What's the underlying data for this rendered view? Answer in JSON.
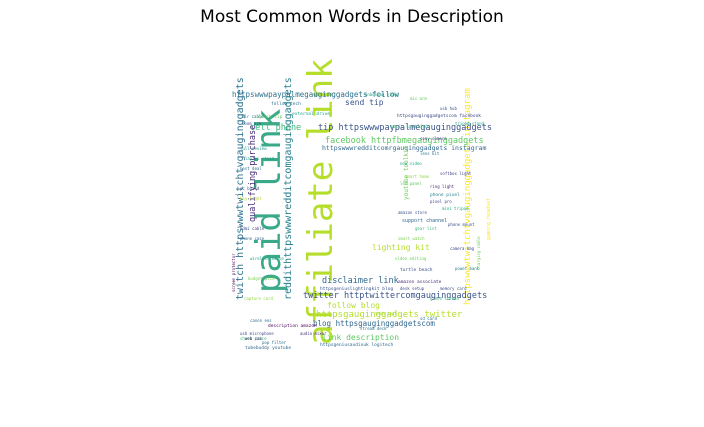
{
  "chart_data": {
    "type": "wordcloud",
    "title": "Most Common Words in Description",
    "mask_shape": "D",
    "colormap": "viridis",
    "words": [
      {
        "text": "affiliate link",
        "rank": 1,
        "color": "#b5de2b"
      },
      {
        "text": "paid link",
        "rank": 2,
        "color": "#3aa987"
      },
      {
        "text": "reddithttpswwwredditcomgauginggadgets",
        "rank": 3,
        "color": "#27808e"
      },
      {
        "text": "httpswwwtwitchtvgauginggadgets instagram",
        "rank": 4,
        "color": "#fde725"
      },
      {
        "text": "twitch httpswwwtwitchtvgauginggadgets",
        "rank": 5,
        "color": "#2c728e"
      },
      {
        "text": "httpswwwpaypalmegauginggadgets follow",
        "rank": 6,
        "color": "#2c728e"
      },
      {
        "text": "tip httpswwwpaypalmegauginggadgets",
        "rank": 7,
        "color": "#3b528b"
      },
      {
        "text": "facebook httpfbmegauginggadgets",
        "rank": 8,
        "color": "#5ec962"
      },
      {
        "text": "twitter httptwittercomgauginggadgets",
        "rank": 9,
        "color": "#3b528b"
      },
      {
        "text": "httpsgauginggadgets twitter",
        "rank": 10,
        "color": "#b5de2b"
      },
      {
        "text": "disclaimer link",
        "rank": 11,
        "color": "#31688e"
      },
      {
        "text": "qualifying purchase",
        "rank": 12,
        "color": "#472d7b"
      },
      {
        "text": "cell phone",
        "rank": 13,
        "color": "#35b779"
      },
      {
        "text": "send tip",
        "rank": 14,
        "color": "#3b528b"
      },
      {
        "text": "lighting kit",
        "rank": 15,
        "color": "#b5de2b"
      },
      {
        "text": "link description",
        "rank": 16,
        "color": "#5ec962"
      },
      {
        "text": "follow blog",
        "rank": 17,
        "color": "#b5de2b"
      },
      {
        "text": "httpswwwredditcomrgauginggadgets instagram",
        "rank": 18,
        "color": "#31688e"
      },
      {
        "text": "blog httpsgauginggadgetscom",
        "rank": 19,
        "color": "#31688e"
      },
      {
        "text": "youtube toolkit",
        "rank": 20,
        "color": "#6ece58"
      },
      {
        "text": "support channel",
        "rank": 21,
        "color": "#31688e"
      },
      {
        "text": "amazon associate",
        "rank": 22,
        "color": "#472d7b"
      },
      {
        "text": "phone pixel",
        "rank": 23,
        "color": "#26828e"
      },
      {
        "text": "turtle beach",
        "rank": 24,
        "color": "#3b528b"
      },
      {
        "text": "music spotlight",
        "rank": 25,
        "color": "#35b779"
      },
      {
        "text": "external drive",
        "rank": 26,
        "color": "#1f9e89"
      },
      {
        "text": "httpsgeniuslightingkit blog",
        "rank": 27,
        "color": "#3b528b"
      },
      {
        "text": "httpsgauginggadgetscom facebook",
        "rank": 28,
        "color": "#3e4989"
      },
      {
        "text": "follow tech",
        "rank": 29,
        "color": "#2c728e"
      },
      {
        "text": "tubebuddy youtube",
        "rank": 30,
        "color": "#31688e"
      },
      {
        "text": "description amazon",
        "rank": 31,
        "color": "#440154"
      },
      {
        "text": "httpsgeniusaudiouk logitech",
        "rank": 32,
        "color": "#31688e"
      },
      {
        "text": "quick tip",
        "rank": 33,
        "color": "#5ec962"
      },
      {
        "text": "pixel pro",
        "rank": 34,
        "color": "#3e4989"
      },
      {
        "text": "canon eos",
        "rank": 35,
        "color": "#2c728e"
      },
      {
        "text": "video editing",
        "rank": 36,
        "color": "#6ece58"
      },
      {
        "text": "amazon store",
        "rank": 37,
        "color": "#3b528b"
      },
      {
        "text": "usb microphone",
        "rank": 38,
        "color": "#3e4989"
      },
      {
        "text": "check price",
        "rank": 39,
        "color": "#35b779"
      },
      {
        "text": "gaming headset",
        "rank": 40,
        "color": "#fde725"
      },
      {
        "text": "new video",
        "rank": 41,
        "color": "#22a884"
      },
      {
        "text": "smart home",
        "rank": 42,
        "color": "#90d743"
      },
      {
        "text": "ring light",
        "rank": 43,
        "color": "#482878"
      },
      {
        "text": "full review",
        "rank": 44,
        "color": "#21918c"
      },
      {
        "text": "best deal",
        "rank": 45,
        "color": "#31688e"
      },
      {
        "text": "pc build",
        "rank": 46,
        "color": "#3b528b"
      },
      {
        "text": "wireless mouse",
        "rank": 47,
        "color": "#1f9e89"
      },
      {
        "text": "budget pick",
        "rank": 48,
        "color": "#7ad151"
      },
      {
        "text": "sony camera",
        "rank": 49,
        "color": "#443983"
      },
      {
        "text": "lens kit",
        "rank": 50,
        "color": "#2a788e"
      },
      {
        "text": "gear list",
        "rank": 51,
        "color": "#35b779"
      },
      {
        "text": "desk setup",
        "rank": 52,
        "color": "#414487"
      },
      {
        "text": "tech deal",
        "rank": 53,
        "color": "#a0da39"
      },
      {
        "text": "stream deck",
        "rank": 54,
        "color": "#2c728e"
      },
      {
        "text": "audio mixer",
        "rank": 55,
        "color": "#46327e"
      },
      {
        "text": "unboxing video",
        "rank": 56,
        "color": "#1fa188"
      },
      {
        "text": "mic arm",
        "rank": 57,
        "color": "#5ec962"
      },
      {
        "text": "usb hub",
        "rank": 58,
        "color": "#3b528b"
      },
      {
        "text": "tripod stand",
        "rank": 59,
        "color": "#20a486"
      },
      {
        "text": "key light",
        "rank": 60,
        "color": "#b5de2b"
      },
      {
        "text": "phone case",
        "rank": 61,
        "color": "#31688e"
      },
      {
        "text": "camera bag",
        "rank": 62,
        "color": "#3e4989"
      },
      {
        "text": "power bank",
        "rank": 63,
        "color": "#26828e"
      },
      {
        "text": "screen protector",
        "rank": 64,
        "color": "#440154"
      },
      {
        "text": "charging cable",
        "rank": 65,
        "color": "#6ece58"
      },
      {
        "text": "memory card",
        "rank": 66,
        "color": "#3b528b"
      },
      {
        "text": "green screen",
        "rank": 67,
        "color": "#35b779"
      },
      {
        "text": "sd card",
        "rank": 68,
        "color": "#2c728e"
      },
      {
        "text": "web cam",
        "rank": 69,
        "color": "#482475"
      },
      {
        "text": "laptop stand",
        "rank": 70,
        "color": "#1f9e89"
      },
      {
        "text": "hdmi cable",
        "rank": 71,
        "color": "#3e4989"
      },
      {
        "text": "capture card",
        "rank": 72,
        "color": "#90d743"
      },
      {
        "text": "pop filter",
        "rank": 73,
        "color": "#31688e"
      },
      {
        "text": "xlr cable",
        "rank": 74,
        "color": "#2a788e"
      },
      {
        "text": "boom arm",
        "rank": 75,
        "color": "#3b528b"
      },
      {
        "text": "led panel",
        "rank": 76,
        "color": "#5ec962"
      },
      {
        "text": "softbox light",
        "rank": 77,
        "color": "#414487"
      },
      {
        "text": "mini tripod",
        "rank": 78,
        "color": "#22a884"
      },
      {
        "text": "phone mount",
        "rank": 79,
        "color": "#3b528b"
      },
      {
        "text": "smart watch",
        "rank": 80,
        "color": "#7ad151"
      }
    ]
  }
}
